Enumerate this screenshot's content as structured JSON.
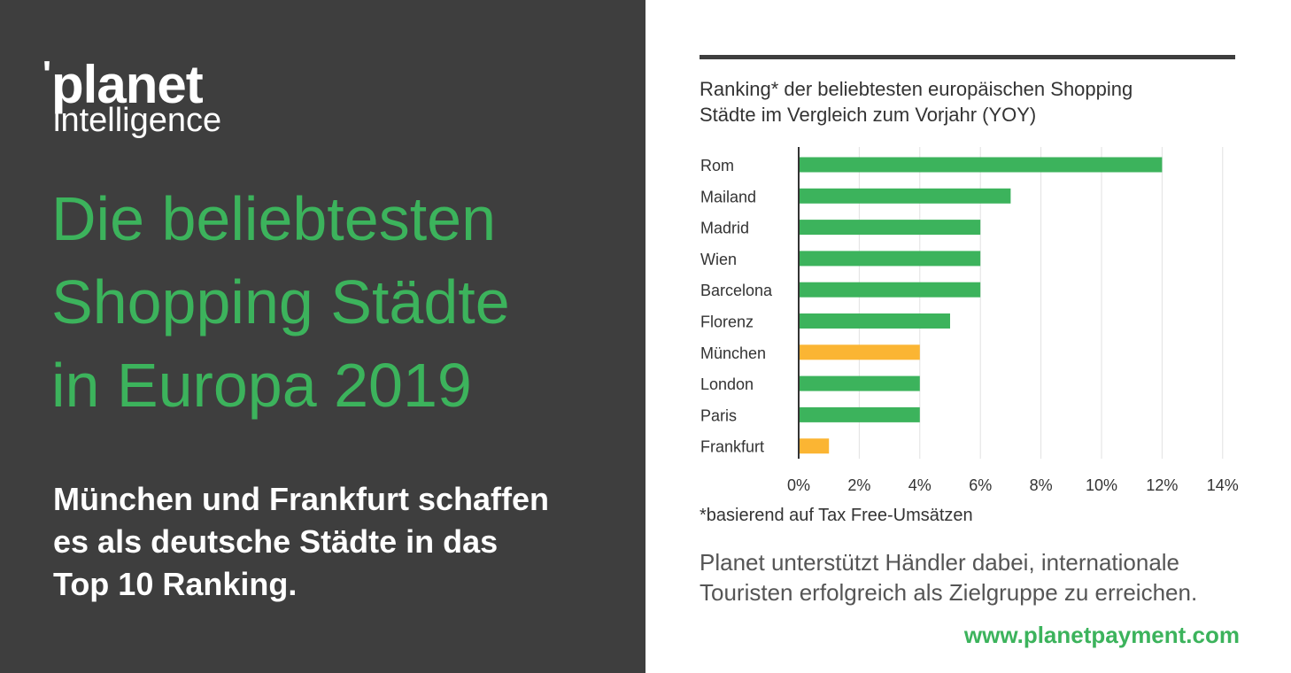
{
  "logo": {
    "apostrophe": "'",
    "name": "planet",
    "sub": "intelligence"
  },
  "headline": {
    "lines": [
      "Die beliebtesten",
      "Shopping Städte",
      "in Europa 2019"
    ]
  },
  "subtext": {
    "lines": [
      "München und Frankfurt schaffen",
      "es als deutsche Städte in das",
      "Top 10 Ranking."
    ]
  },
  "chart_title": {
    "lines": [
      "Ranking* der beliebtesten europäischen Shopping",
      "Städte im Vergleich zum Vorjahr (YOY)"
    ]
  },
  "chart_data": {
    "type": "bar",
    "orientation": "horizontal",
    "title": "Ranking* der beliebtesten europäischen Shopping Städte im Vergleich zum Vorjahr (YOY)",
    "categories": [
      "Rom",
      "Mailand",
      "Madrid",
      "Wien",
      "Barcelona",
      "Florenz",
      "München",
      "London",
      "Paris",
      "Frankfurt"
    ],
    "values": [
      12,
      7,
      6,
      6,
      6,
      5,
      4,
      4,
      4,
      1
    ],
    "highlight": [
      false,
      false,
      false,
      false,
      false,
      false,
      true,
      false,
      false,
      true
    ],
    "colors": {
      "default": "#3cb35c",
      "highlight": "#fbb533"
    },
    "xlim": [
      0,
      14
    ],
    "xticks": [
      "0%",
      "2%",
      "4%",
      "6%",
      "8%",
      "10%",
      "12%",
      "14%"
    ],
    "tick_values": [
      0,
      2,
      4,
      6,
      8,
      10,
      12,
      14
    ],
    "grid": true,
    "xlabel": "",
    "ylabel": ""
  },
  "footnote": "*basierend auf Tax Free-Umsätzen",
  "description": {
    "lines": [
      "Planet unterstützt Händler dabei, internationale",
      "Touristen erfolgreich als Zielgruppe zu erreichen."
    ]
  },
  "url": "www.planetpayment.com",
  "colors": {
    "panel": "#3e3e3e",
    "accent_green": "#3cb35c",
    "accent_yellow": "#fbb533"
  }
}
